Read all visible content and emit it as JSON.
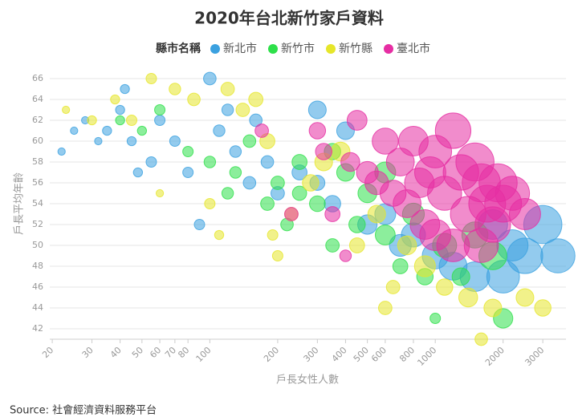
{
  "chart_data": {
    "type": "bubble",
    "title": "2020年台北新竹家戶資料",
    "legend_title": "縣市名稱",
    "x_label": "戶長女性人數",
    "y_label": "戶長平均年齡",
    "source": "Source: 社會經濟資料服務平台",
    "x_log": true,
    "grid": true,
    "legend_position": "top",
    "xlim": [
      19.5,
      3800
    ],
    "ylim": [
      41,
      67
    ],
    "xticks": [
      20,
      30,
      40,
      50,
      60,
      70,
      80,
      100,
      200,
      300,
      400,
      500,
      600,
      800,
      1000,
      2000,
      3000
    ],
    "yticks": [
      42,
      44,
      46,
      48,
      50,
      52,
      54,
      56,
      58,
      60,
      62,
      64,
      66
    ],
    "series": [
      {
        "name": "新北市",
        "color": "#3ba1e0",
        "x": [
          22,
          25,
          28,
          32,
          35,
          40,
          42,
          45,
          48,
          55,
          60,
          70,
          80,
          90,
          100,
          110,
          130,
          150,
          180,
          200,
          250,
          300,
          350,
          400,
          500,
          600,
          700,
          800,
          1000,
          1200,
          1500,
          2000,
          2500,
          3000,
          3500,
          2200,
          1800,
          120,
          160,
          300
        ],
        "y": [
          59,
          61,
          62,
          60,
          61,
          63,
          65,
          60,
          57,
          58,
          62,
          60,
          57,
          52,
          66,
          61,
          59,
          56,
          58,
          55,
          57,
          63,
          54,
          61,
          52,
          53,
          50,
          51,
          49,
          48,
          47,
          47,
          49,
          52,
          49,
          50,
          52,
          63,
          62,
          56
        ],
        "size": [
          1,
          1,
          1,
          1,
          2,
          2,
          2,
          2,
          2,
          3,
          3,
          3,
          3,
          3,
          5,
          4,
          4,
          5,
          5,
          6,
          8,
          12,
          10,
          12,
          15,
          18,
          20,
          25,
          30,
          35,
          40,
          50,
          60,
          70,
          55,
          45,
          40,
          4,
          5,
          8
        ]
      },
      {
        "name": "新竹市",
        "color": "#2ee04a",
        "x": [
          40,
          50,
          60,
          80,
          100,
          130,
          150,
          200,
          220,
          250,
          300,
          350,
          400,
          450,
          500,
          600,
          700,
          800,
          900,
          1000,
          1100,
          1300,
          1500,
          2000,
          1800,
          250,
          350,
          600,
          120,
          180
        ],
        "y": [
          62,
          61,
          63,
          59,
          58,
          57,
          60,
          56,
          52,
          55,
          54,
          50,
          57,
          52,
          55,
          51,
          48,
          53,
          47,
          43,
          50,
          47,
          51,
          43,
          49,
          58,
          59,
          57,
          55,
          54
        ],
        "size": [
          2,
          2,
          3,
          3,
          4,
          4,
          5,
          6,
          5,
          7,
          9,
          6,
          12,
          10,
          14,
          16,
          8,
          20,
          10,
          3,
          25,
          12,
          30,
          15,
          35,
          8,
          10,
          18,
          4,
          6
        ]
      },
      {
        "name": "新竹縣",
        "color": "#e6e62a",
        "x": [
          23,
          30,
          38,
          45,
          55,
          60,
          70,
          85,
          100,
          110,
          120,
          140,
          160,
          180,
          190,
          200,
          230,
          280,
          320,
          380,
          450,
          550,
          650,
          750,
          900,
          1100,
          1400,
          1600,
          1800,
          2500,
          3000,
          600
        ],
        "y": [
          63,
          62,
          64,
          62,
          66,
          55,
          65,
          64,
          54,
          51,
          65,
          63,
          64,
          60,
          51,
          49,
          53,
          56,
          58,
          59,
          50,
          53,
          46,
          50,
          48,
          46,
          45,
          41,
          44,
          45,
          44,
          44
        ],
        "size": [
          1,
          2,
          2,
          3,
          3,
          1,
          4,
          5,
          3,
          2,
          6,
          6,
          7,
          8,
          3,
          3,
          6,
          10,
          12,
          14,
          8,
          12,
          6,
          14,
          18,
          10,
          14,
          5,
          12,
          12,
          10,
          6
        ]
      },
      {
        "name": "臺北市",
        "color": "#e62ea3",
        "x": [
          170,
          230,
          300,
          320,
          350,
          400,
          420,
          450,
          500,
          550,
          600,
          650,
          700,
          750,
          800,
          850,
          900,
          950,
          1000,
          1100,
          1200,
          1300,
          1400,
          1500,
          1600,
          1700,
          1800,
          1900,
          2000,
          2200,
          2500,
          1000,
          1200,
          1600
        ],
        "y": [
          61,
          53,
          61,
          59,
          53,
          49,
          58,
          62,
          57,
          56,
          60,
          55,
          58,
          54,
          60,
          56,
          52,
          57,
          59,
          55,
          61,
          57,
          53,
          58,
          56,
          54,
          52,
          56,
          54,
          55,
          53,
          51,
          50,
          50
        ],
        "size": [
          6,
          6,
          10,
          10,
          8,
          4,
          14,
          16,
          20,
          24,
          30,
          30,
          35,
          35,
          40,
          40,
          40,
          45,
          50,
          55,
          60,
          60,
          60,
          70,
          70,
          65,
          60,
          70,
          65,
          55,
          45,
          45,
          50,
          55
        ]
      }
    ]
  }
}
